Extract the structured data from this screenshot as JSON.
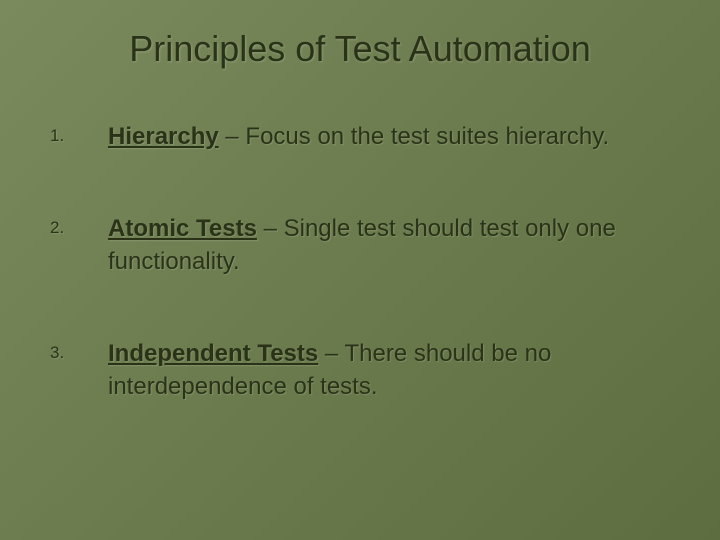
{
  "slide": {
    "title": "Principles of Test Automation",
    "background_colors": [
      "#7a8a5c",
      "#6b7b4d",
      "#5d6d3f"
    ],
    "title_color": "#2a3318",
    "title_fontsize": 36,
    "text_color": "#2a3318",
    "body_fontsize": 24,
    "number_fontsize": 17,
    "items": [
      {
        "number": "1.",
        "bold": "Hierarchy",
        "separator": " – ",
        "text": "Focus on the test suites hierarchy."
      },
      {
        "number": "2.",
        "bold": "Atomic Tests",
        "separator": " – ",
        "text": "Single test should test only one functionality."
      },
      {
        "number": "3.",
        "bold": "Independent Tests",
        "separator": " – ",
        "text": "There should be no interdependence of tests."
      }
    ]
  }
}
